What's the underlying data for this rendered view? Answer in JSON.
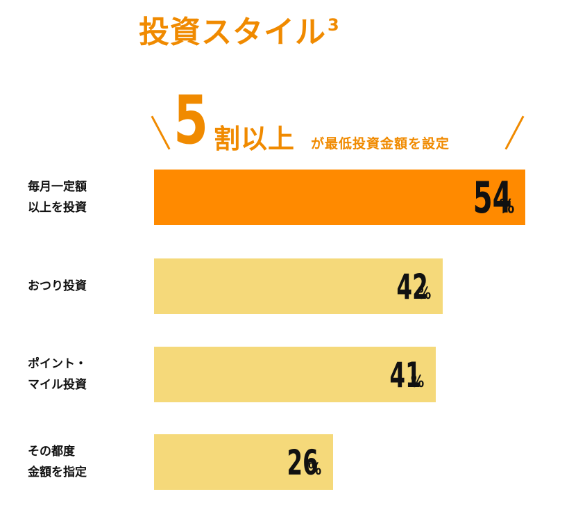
{
  "header": {
    "title": "投資スタイル",
    "title_superscript": "3"
  },
  "headline": {
    "big_number": "5",
    "unit": "割以上",
    "rest": "が最低投資金額を設定"
  },
  "colors": {
    "accent": "#f08a00",
    "highlight_bar": "#ff8a00",
    "normal_bar": "#f5d97a",
    "text": "#111111"
  },
  "chart_data": {
    "type": "bar",
    "orientation": "horizontal",
    "categories": [
      "毎月一定額\n以上を投資",
      "おつり投資",
      "ポイント・\nマイル投資",
      "その都度\n金額を指定"
    ],
    "values": [
      54,
      42,
      41,
      26
    ],
    "value_labels": [
      "54",
      "42",
      "41",
      "26"
    ],
    "unit_label": "%",
    "highlight_index": 0,
    "xlim": [
      0,
      54
    ]
  }
}
